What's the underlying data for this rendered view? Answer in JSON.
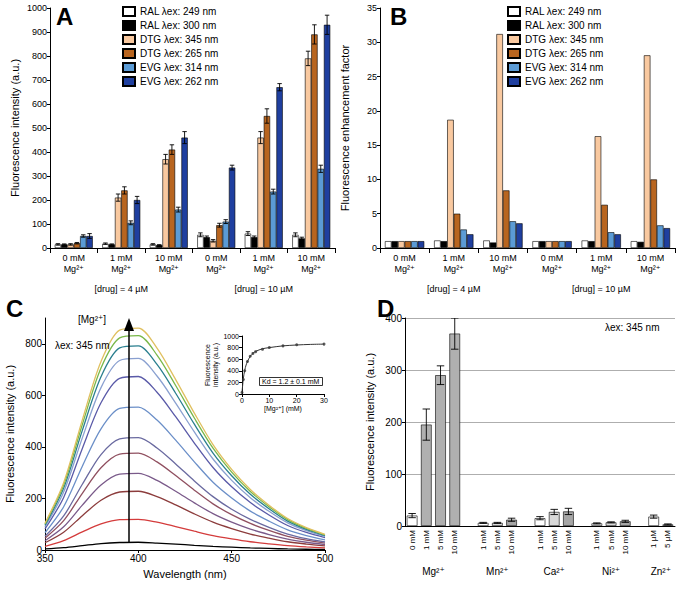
{
  "chart_data": [
    {
      "type": "bar",
      "title": "A",
      "y_label": "Fluorescence intensity (a.u.)",
      "groups": [
        {
          "label": "[drug] = 4 µM",
          "categories": [
            "0 mM\nMg²⁺",
            "1 mM\nMg²⁺",
            "10 mM\nMg²⁺"
          ]
        },
        {
          "label": "[drug] = 10 µM",
          "categories": [
            "0 mM\nMg²⁺",
            "1 mM\nMg²⁺",
            "10 mM\nMg²⁺"
          ]
        }
      ],
      "series": [
        {
          "name": "RAL λex: 249 nm",
          "color": "#ffffff",
          "values": [
            15,
            18,
            15,
            55,
            60,
            55
          ],
          "errors": [
            3,
            3,
            3,
            8,
            8,
            8
          ]
        },
        {
          "name": "RAL λex: 300 nm",
          "color": "#000000",
          "values": [
            15,
            15,
            12,
            45,
            45,
            40
          ],
          "errors": [
            2,
            2,
            2,
            5,
            5,
            5
          ]
        },
        {
          "name": "DTG λex: 345 nm",
          "color": "#f9c9a0",
          "values": [
            15,
            210,
            370,
            30,
            460,
            790
          ],
          "errors": [
            3,
            15,
            20,
            5,
            25,
            30
          ]
        },
        {
          "name": "DTG λex: 265 nm",
          "color": "#b8651f",
          "values": [
            20,
            240,
            410,
            95,
            550,
            890
          ],
          "errors": [
            3,
            15,
            20,
            8,
            30,
            40
          ]
        },
        {
          "name": "EVG λex: 314 nm",
          "color": "#5b9bd5",
          "values": [
            50,
            105,
            160,
            110,
            235,
            330
          ],
          "errors": [
            5,
            8,
            10,
            8,
            10,
            15
          ]
        },
        {
          "name": "EVG λex: 262 nm",
          "color": "#1f3f9f",
          "values": [
            50,
            200,
            460,
            335,
            670,
            930
          ],
          "errors": [
            10,
            15,
            25,
            10,
            15,
            40
          ]
        }
      ],
      "ylim": [
        0,
        1000
      ],
      "yticks": [
        0,
        100,
        200,
        300,
        400,
        500,
        600,
        700,
        800,
        900,
        1000
      ],
      "grid": false,
      "legend": "top"
    },
    {
      "type": "bar",
      "title": "B",
      "y_label": "Fluorescence enhancement factor",
      "groups": [
        {
          "label": "[drug] = 4 µM",
          "categories": [
            "0 mM\nMg²⁺",
            "1 mM\nMg²⁺",
            "10 mM\nMg²⁺"
          ]
        },
        {
          "label": "[drug] = 10 µM",
          "categories": [
            "0 mM\nMg²⁺",
            "1 mM\nMg²⁺",
            "10 mM\nMg²⁺"
          ]
        }
      ],
      "series": [
        {
          "name": "RAL λex: 249 nm",
          "color": "#ffffff",
          "values": [
            1,
            1.1,
            1.1,
            1,
            1.1,
            1
          ]
        },
        {
          "name": "RAL λex: 300 nm",
          "color": "#000000",
          "values": [
            1,
            1,
            0.8,
            1,
            1,
            0.9
          ]
        },
        {
          "name": "DTG λex: 345 nm",
          "color": "#f9c9a0",
          "values": [
            1,
            18.7,
            31.2,
            1,
            16.3,
            28.1
          ]
        },
        {
          "name": "DTG λex: 265 nm",
          "color": "#b8651f",
          "values": [
            1,
            5,
            8.4,
            1,
            6.3,
            10
          ]
        },
        {
          "name": "EVG λex: 314 nm",
          "color": "#5b9bd5",
          "values": [
            1,
            2.7,
            3.9,
            1,
            2.3,
            3.3
          ]
        },
        {
          "name": "EVG λex: 262 nm",
          "color": "#1f3f9f",
          "values": [
            1,
            2,
            3.6,
            1,
            2,
            2.9
          ]
        }
      ],
      "ylim": [
        0,
        35
      ],
      "yticks": [
        0,
        5,
        10,
        15,
        20,
        25,
        30,
        35
      ],
      "grid": false,
      "legend": "top"
    },
    {
      "type": "line",
      "title": "C",
      "x_label": "Wavelength (nm)",
      "y_label": "Fluorescence intensity (a.u.)",
      "annotations": [
        "λex: 345 nm",
        "[Mg²⁺]"
      ],
      "x": [
        350,
        360,
        370,
        380,
        390,
        400,
        410,
        420,
        430,
        440,
        450,
        460,
        470,
        480,
        490,
        500
      ],
      "series": [
        {
          "color": "#000000",
          "values": [
            4,
            9,
            17,
            25,
            29,
            30,
            27,
            23,
            18,
            14,
            11,
            8,
            6,
            4,
            3,
            2
          ]
        },
        {
          "color": "#d43c3c",
          "values": [
            14,
            36,
            70,
            101,
            118,
            119,
            108,
            91,
            73,
            56,
            43,
            32,
            24,
            17,
            12,
            8
          ]
        },
        {
          "color": "#8c3c3c",
          "values": [
            28,
            69,
            133,
            193,
            225,
            228,
            207,
            175,
            140,
            108,
            83,
            62,
            46,
            32,
            23,
            16
          ]
        },
        {
          "color": "#7a5a8a",
          "values": [
            36,
            90,
            174,
            252,
            294,
            297,
            270,
            228,
            183,
            141,
            108,
            81,
            60,
            42,
            30,
            21
          ]
        },
        {
          "color": "#905060",
          "values": [
            46,
            114,
            220,
            319,
            372,
            376,
            342,
            289,
            232,
            179,
            137,
            103,
            76,
            53,
            38,
            27
          ]
        },
        {
          "color": "#6a6aa0",
          "values": [
            53,
            132,
            255,
            370,
            431,
            436,
            396,
            334,
            268,
            207,
            158,
            119,
            88,
            62,
            44,
            31
          ]
        },
        {
          "color": "#6b8fc8",
          "values": [
            67,
            168,
            325,
            470,
            549,
            554,
            504,
            426,
            342,
            263,
            202,
            151,
            112,
            78,
            56,
            39
          ]
        },
        {
          "color": "#5a5aa8",
          "values": [
            82,
            204,
            394,
            571,
            666,
            673,
            612,
            517,
            415,
            320,
            245,
            184,
            136,
            95,
            68,
            48
          ]
        },
        {
          "color": "#8aa0d0",
          "values": [
            90,
            225,
            435,
            630,
            735,
            743,
            675,
            570,
            458,
            353,
            270,
            203,
            150,
            105,
            75,
            53
          ]
        },
        {
          "color": "#2a7f8f",
          "values": [
            96,
            240,
            464,
            672,
            784,
            792,
            720,
            608,
            488,
            376,
            288,
            216,
            160,
            112,
            80,
            56
          ]
        },
        {
          "color": "#7ab84a",
          "values": [
            101,
            252,
            487,
            706,
            823,
            832,
            756,
            638,
            512,
            395,
            302,
            227,
            168,
            118,
            84,
            59
          ]
        },
        {
          "color": "#e0c060",
          "values": [
            104,
            261,
            505,
            731,
            853,
            861,
            783,
            661,
            531,
            409,
            313,
            235,
            174,
            122,
            87,
            61
          ]
        }
      ],
      "xlim": [
        350,
        500
      ],
      "xticks": [
        350,
        400,
        450,
        500
      ],
      "ylim": [
        0,
        900
      ],
      "yticks": [
        0,
        200,
        400,
        600,
        800
      ],
      "grid": false,
      "marker": "none",
      "line_style": "solid"
    },
    {
      "type": "scatter",
      "x_label": "[Mg²⁺] (mM)",
      "y_label": "Fluorescence\nintensity (a.u.)",
      "annotations": [
        "Kd = 1.2 ± 0.1 mM"
      ],
      "series": [
        {
          "type": "scatter",
          "marker": "circle",
          "color": "#333333",
          "x": [
            0,
            0.5,
            1,
            2,
            3,
            4,
            5,
            7.5,
            10,
            15,
            20,
            30
          ],
          "values": [
            25,
            250,
            400,
            560,
            650,
            700,
            730,
            770,
            800,
            830,
            850,
            860
          ]
        },
        {
          "type": "line",
          "marker": "none",
          "color": "#333333",
          "x": [
            0,
            0.5,
            1,
            1.5,
            2,
            3,
            4,
            5,
            7.5,
            10,
            15,
            20,
            25,
            30
          ],
          "values": [
            25,
            270,
            410,
            500,
            560,
            650,
            700,
            735,
            780,
            800,
            830,
            845,
            855,
            860
          ]
        }
      ],
      "xlim": [
        0,
        30
      ],
      "xticks": [
        0,
        10,
        20,
        30
      ],
      "ylim": [
        0,
        1000
      ],
      "yticks": [
        0,
        200,
        400,
        600,
        800,
        1000
      ],
      "grid": false
    },
    {
      "type": "bar",
      "title": "D",
      "y_label": "Fluorescence intensity (a.u.)",
      "annotations": [
        "λex: 345 nm"
      ],
      "groups": [
        {
          "label": "Mg²⁺",
          "categories": [
            "0 mM",
            "1 mM",
            "5 mM",
            "10 mM"
          ],
          "values": [
            20,
            195,
            290,
            370
          ],
          "errors": [
            4,
            30,
            18,
            30
          ],
          "colors": [
            "#ffffff",
            "#b0b0b0",
            "#b0b0b0",
            "#b0b0b0"
          ]
        },
        {
          "label": "Mn²⁺",
          "categories": [
            "1 mM",
            "5 mM",
            "10 mM"
          ],
          "values": [
            6,
            6,
            12
          ],
          "errors": [
            1,
            1,
            3
          ],
          "colors": [
            "#ffffff",
            "#d9d9d9",
            "#a6a6a6"
          ]
        },
        {
          "label": "Ca²⁺",
          "categories": [
            "1 mM",
            "5 mM",
            "10 mM"
          ],
          "values": [
            15,
            27,
            28
          ],
          "errors": [
            3,
            5,
            6
          ],
          "colors": [
            "#ffffff",
            "#d9d9d9",
            "#a6a6a6"
          ]
        },
        {
          "label": "Ni²⁺",
          "categories": [
            "1 mM",
            "5 mM",
            "10 mM"
          ],
          "values": [
            5,
            7,
            9
          ],
          "errors": [
            1,
            1,
            2
          ],
          "colors": [
            "#ffffff",
            "#d9d9d9",
            "#a6a6a6"
          ]
        },
        {
          "label": "Zn²⁺",
          "categories": [
            "1 µM",
            "5 µM"
          ],
          "values": [
            18,
            3
          ],
          "errors": [
            3,
            1
          ],
          "colors": [
            "#ffffff",
            "#d9d9d9"
          ]
        }
      ],
      "ylim": [
        0,
        400
      ],
      "yticks": [
        0,
        100,
        200,
        300,
        400
      ],
      "grid": true
    }
  ]
}
